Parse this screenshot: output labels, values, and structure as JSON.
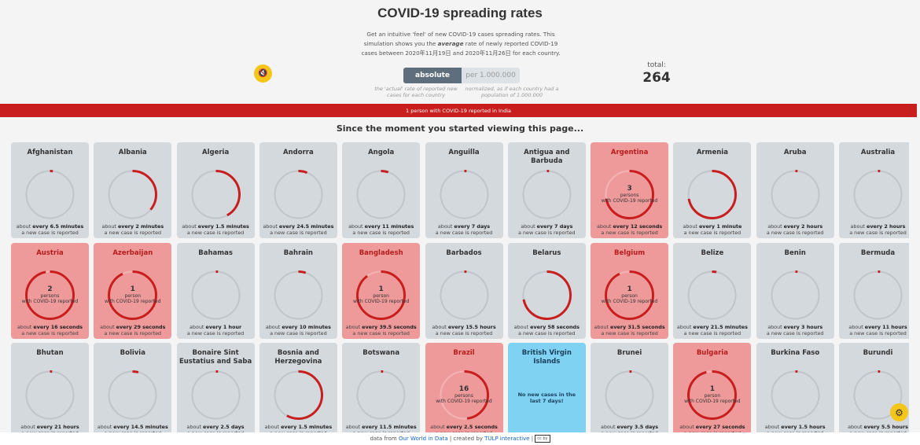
{
  "header": {
    "title": "COVID-19 spreading rates",
    "intro_1": "Get an intuitive 'feel' of new COVID-19 cases spreading rates. This simulation shows you the ",
    "intro_avg": "average",
    "intro_2": " rate of newly reported COVID-19 cases between 2020年11月19日 and 2020年11月26日 for each country.",
    "sound_icon": "🔇"
  },
  "toggle": {
    "absolute_label": "absolute",
    "per_label": "per 1.000.000",
    "absolute_desc": "the 'actual' rate of reported new cases for each country",
    "per_desc": "normalized, as if each country had a population of 1.000.000"
  },
  "total": {
    "label": "total:",
    "value": "264"
  },
  "banner": "1 person with COVID-19 reported in India",
  "since": "Since the moment you started viewing this page...",
  "rate_prefix": "about ",
  "rate_suffix": "a new case is reported",
  "countries": [
    {
      "name": "Afghanistan",
      "rate": "every 6.5 minutes",
      "progress": 0.02,
      "state": "normal"
    },
    {
      "name": "Albania",
      "rate": "every 2 minutes",
      "progress": 0.36,
      "state": "normal"
    },
    {
      "name": "Algeria",
      "rate": "every 1.5 minutes",
      "progress": 0.42,
      "state": "normal"
    },
    {
      "name": "Andorra",
      "rate": "every 24.5 minutes",
      "progress": 0.06,
      "state": "normal"
    },
    {
      "name": "Angola",
      "rate": "every 11 minutes",
      "progress": 0.05,
      "state": "normal"
    },
    {
      "name": "Anguilla",
      "rate": "every 7 days",
      "progress": 0.0,
      "state": "normal"
    },
    {
      "name": "Antigua and Barbuda",
      "rate": "every 7 days",
      "progress": 0.0,
      "state": "normal"
    },
    {
      "name": "Argentina",
      "rate": "every 12 seconds",
      "progress": 0.72,
      "state": "red",
      "count": "3",
      "unit": "persons",
      "sub": "with COVID-19 reported"
    },
    {
      "name": "Armenia",
      "rate": "every 1 minute",
      "progress": 0.72,
      "state": "normal"
    },
    {
      "name": "Aruba",
      "rate": "every 2 hours",
      "progress": 0.0,
      "state": "normal"
    },
    {
      "name": "Australia",
      "rate": "every 2 hours",
      "progress": 0.0,
      "state": "normal"
    },
    {
      "name": "Austria",
      "rate": "every 16 seconds",
      "progress": 0.97,
      "state": "red",
      "count": "2",
      "unit": "persons",
      "sub": "with COVID-19 reported"
    },
    {
      "name": "Azerbaijan",
      "rate": "every 29 seconds",
      "progress": 0.93,
      "state": "red",
      "count": "1",
      "unit": "person",
      "sub": "with COVID-19 reported"
    },
    {
      "name": "Bahamas",
      "rate": "every 1 hour",
      "progress": 0.01,
      "state": "normal"
    },
    {
      "name": "Bahrain",
      "rate": "every 10 minutes",
      "progress": 0.05,
      "state": "normal"
    },
    {
      "name": "Bangladesh",
      "rate": "every 39.5 seconds",
      "progress": 0.9,
      "state": "red",
      "count": "1",
      "unit": "person",
      "sub": "with COVID-19 reported"
    },
    {
      "name": "Barbados",
      "rate": "every 15.5 hours",
      "progress": 0.0,
      "state": "normal"
    },
    {
      "name": "Belarus",
      "rate": "every 58 seconds",
      "progress": 0.72,
      "state": "normal"
    },
    {
      "name": "Belgium",
      "rate": "every 31.5 seconds",
      "progress": 0.93,
      "state": "red",
      "count": "1",
      "unit": "person",
      "sub": "with COVID-19 reported"
    },
    {
      "name": "Belize",
      "rate": "every 21.5 minutes",
      "progress": 0.03,
      "state": "normal"
    },
    {
      "name": "Benin",
      "rate": "every 3 hours",
      "progress": 0.01,
      "state": "normal"
    },
    {
      "name": "Bermuda",
      "rate": "every 11 hours",
      "progress": 0.0,
      "state": "normal"
    },
    {
      "name": "Bhutan",
      "rate": "every 21 hours",
      "progress": 0.0,
      "state": "normal"
    },
    {
      "name": "Bolivia",
      "rate": "every 14.5 minutes",
      "progress": 0.04,
      "state": "normal"
    },
    {
      "name": "Bonaire Sint Eustatius and Saba",
      "rate": "every 2.5 days",
      "progress": 0.0,
      "state": "normal"
    },
    {
      "name": "Bosnia and Herzegovina",
      "rate": "every 1.5 minutes",
      "progress": 0.58,
      "state": "normal"
    },
    {
      "name": "Botswana",
      "rate": "every 11.5 minutes",
      "progress": 0.0,
      "state": "normal"
    },
    {
      "name": "Brazil",
      "rate": "every 2.5 seconds",
      "progress": 0.48,
      "state": "red",
      "count": "16",
      "unit": "persons",
      "sub": "with COVID-19 reported"
    },
    {
      "name": "British Virgin Islands",
      "rate": "",
      "progress": 0.0,
      "state": "blue",
      "nocase": "No new cases in the last 7 days!"
    },
    {
      "name": "Brunei",
      "rate": "every 3.5 days",
      "progress": 0.0,
      "state": "normal"
    },
    {
      "name": "Bulgaria",
      "rate": "every 27 seconds",
      "progress": 0.96,
      "state": "red",
      "count": "1",
      "unit": "person",
      "sub": "with COVID-19 reported"
    },
    {
      "name": "Burkina Faso",
      "rate": "every 1.5 hours",
      "progress": 0.0,
      "state": "normal"
    },
    {
      "name": "Burundi",
      "rate": "every 5.5 hours",
      "progress": 0.0,
      "state": "normal"
    }
  ],
  "footer": {
    "prefix": "data from ",
    "source": "Our World in Data",
    "middle": " | created by ",
    "creator": "TULP interactive",
    "end": " | ",
    "license": "cc by"
  },
  "settings_icon": "⚙",
  "colors": {
    "ring": "#c81e1e",
    "ring_track": "#bfc5cb",
    "accent": "#f5c518"
  }
}
